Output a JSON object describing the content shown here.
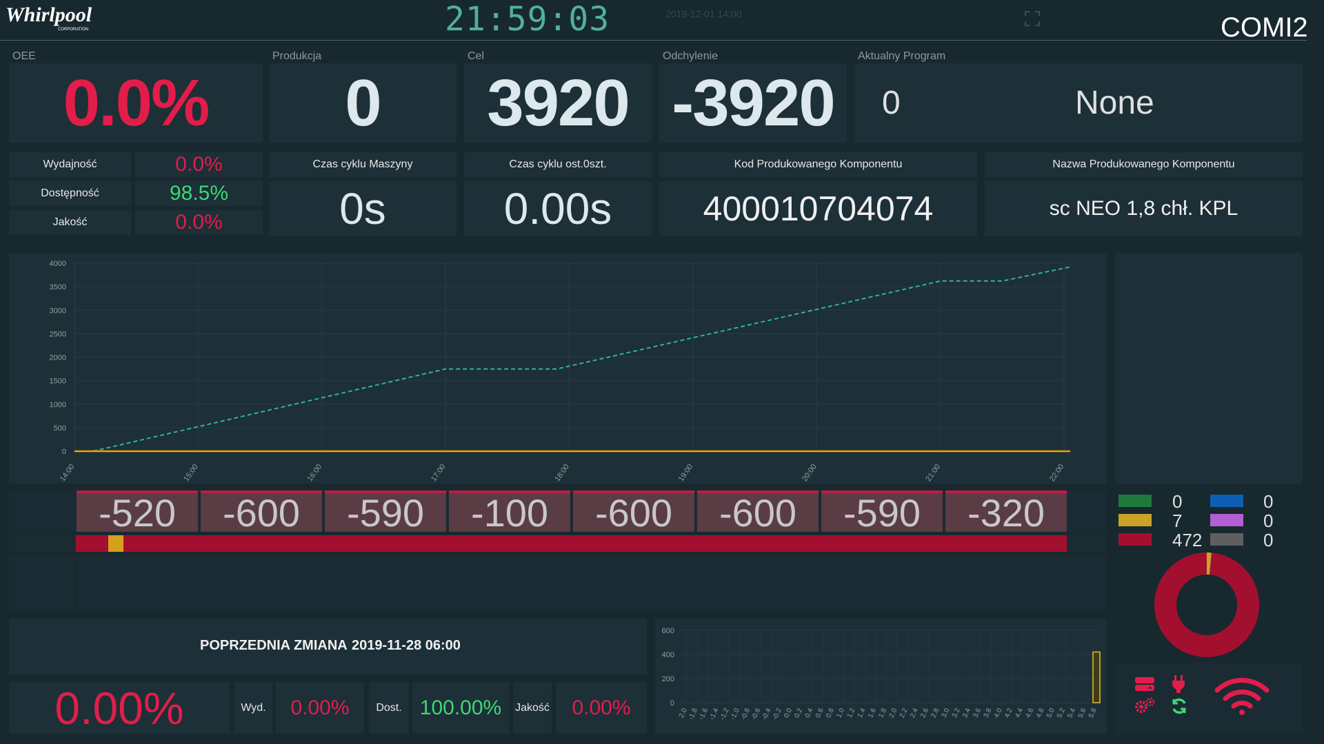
{
  "header": {
    "logo_text": "Whirlpool",
    "logo_sub": "CORPORATION",
    "clock": "21:59:03",
    "datetime": "2019-12-01 14:00",
    "machine": "COMI2"
  },
  "kpi": {
    "oee_label": "OEE",
    "oee_value": "0.0%",
    "produkcja_label": "Produkcja",
    "produkcja_value": "0",
    "cel_label": "Cel",
    "cel_value": "3920",
    "odchylenie_label": "Odchylenie",
    "odchylenie_value": "-3920",
    "program_label": "Aktualny Program",
    "program_number": "0",
    "program_name": "None"
  },
  "oee_breakdown": [
    {
      "label": "Wydajność",
      "value": "0.0%",
      "color": "#e21d4a"
    },
    {
      "label": "Dostępność",
      "value": "98.5%",
      "color": "#3ed872"
    },
    {
      "label": "Jakość",
      "value": "0.0%",
      "color": "#e21d4a"
    }
  ],
  "cycle": {
    "machine_label": "Czas cyklu Maszyny",
    "machine_value": "0s",
    "last_label": "Czas cyklu ost.0szt.",
    "last_value": "0.00s"
  },
  "component": {
    "code_label": "Kod Produkowanego Komponentu",
    "code_value": "400010704074",
    "name_label": "Nazwa Produkowanego Komponentu",
    "name_value": "sc NEO 1,8 chł. KPL"
  },
  "chart_data": [
    {
      "type": "line",
      "x": [
        "14:00",
        "15:00",
        "16:00",
        "17:00",
        "18:00",
        "19:00",
        "20:00",
        "21:00",
        "22:00"
      ],
      "ylim": [
        0,
        4000
      ],
      "yticks": [
        0,
        500,
        1000,
        1500,
        2000,
        2500,
        3000,
        3500,
        4000
      ],
      "series": [
        {
          "color": "#2fb3a6",
          "style": "dashed",
          "points": [
            [
              14.15,
              0
            ],
            [
              17.0,
              1750
            ],
            [
              17.9,
              1750
            ],
            [
              21.0,
              3620
            ],
            [
              21.5,
              3620
            ],
            [
              22.05,
              3920
            ]
          ]
        },
        {
          "color": "#f0a30a",
          "style": "solid",
          "points": [
            [
              14.0,
              0
            ],
            [
              22.05,
              0
            ]
          ]
        }
      ]
    },
    {
      "type": "bar",
      "ylim": [
        0,
        600
      ],
      "yticks": [
        0,
        200,
        400,
        600
      ],
      "x_ticks": [
        "2.0",
        "-1.8",
        "-1.6",
        "-1.4",
        "-1.2",
        "-1.0",
        "-0.8",
        "-0.6",
        "-0.4",
        "-0.2",
        "0.0",
        "0.2",
        "0.4",
        "0.6",
        "0.8",
        "1.0",
        "1.2",
        "1.4",
        "1.6",
        "1.8",
        "2.0",
        "2.2",
        "2.4",
        "2.6",
        "2.8",
        "3.0",
        "3.2",
        "3.4",
        "3.6",
        "3.8",
        "4.0",
        "4.2",
        "4.4",
        "4.6",
        "4.8",
        "5.0",
        "5.2",
        "5.4",
        "5.6",
        "5.8"
      ],
      "bars": [
        {
          "x": "5.8",
          "value": 420
        }
      ]
    },
    {
      "type": "pie",
      "slices": [
        {
          "value": 0,
          "color": "#1e7a3a"
        },
        {
          "value": 7,
          "color": "#c9a227"
        },
        {
          "value": 472,
          "color": "#a3102f"
        },
        {
          "value": 0,
          "color": "#0d5fb3"
        },
        {
          "value": 0,
          "color": "#b35fd4"
        },
        {
          "value": 0,
          "color": "#5f5f5f"
        }
      ]
    }
  ],
  "deviations": [
    "-520",
    "-600",
    "-590",
    "-100",
    "-600",
    "-600",
    "-590",
    "-320"
  ],
  "status_bar": {
    "yellow_marker_fraction": 0.033
  },
  "legend": [
    {
      "value": "0",
      "color": "#1e7a3a"
    },
    {
      "value": "7",
      "color": "#c9a227"
    },
    {
      "value": "472",
      "color": "#a3102f"
    },
    {
      "value": "0",
      "color": "#0d5fb3"
    },
    {
      "value": "0",
      "color": "#b35fd4"
    },
    {
      "value": "0",
      "color": "#5f5f5f"
    }
  ],
  "previous_shift": {
    "title": "POPRZEDNIA ZMIANA",
    "date": "2019-11-28 06:00",
    "oee_value": "0.00%",
    "wyd_label": "Wyd.",
    "wyd_value": "0.00%",
    "dost_label": "Dost.",
    "dost_value": "100.00%",
    "jakosc_label": "Jakość",
    "jakosc_value": "0.00%"
  },
  "icons": [
    "server-icon",
    "plug-icon",
    "gears-icon",
    "refresh-icon",
    "wifi-icon"
  ]
}
